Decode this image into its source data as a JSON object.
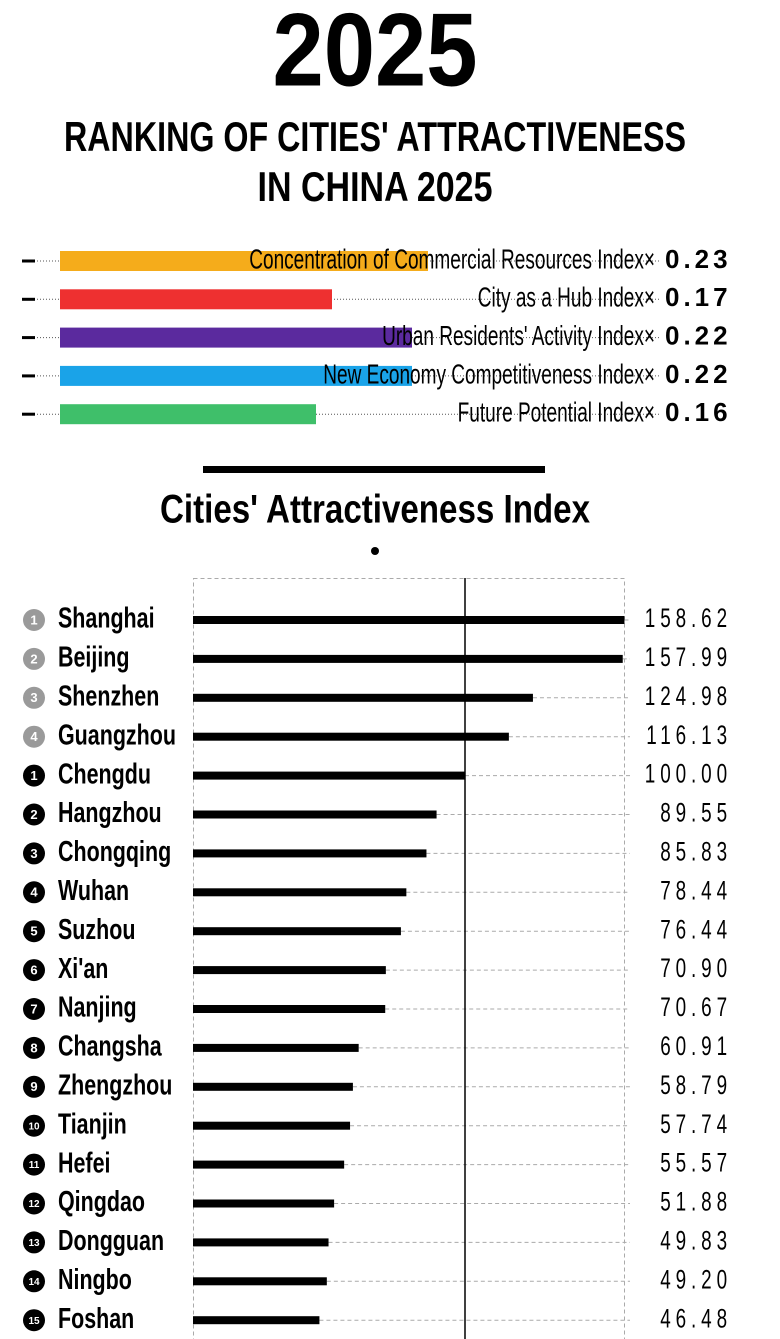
{
  "header": {
    "year": "2025",
    "title_lines": [
      "RANKING OF CITIES' ATTRACTIVENESS",
      "IN CHINA 2025"
    ]
  },
  "weights": {
    "xlim": [
      0,
      0.25
    ],
    "items": [
      {
        "name": "Concentration of Commercial Resources Index×",
        "value": 0.23,
        "color": "#f5ac1b"
      },
      {
        "name": "City as a Hub Index×",
        "value": 0.17,
        "color": "#ee3030"
      },
      {
        "name": "Urban Residents' Activity Index×",
        "value": 0.22,
        "color": "#5b2a9e"
      },
      {
        "name": "New Economy Competitiveness Index×",
        "value": 0.22,
        "color": "#1aa3e8"
      },
      {
        "name": "Future Potential Index×",
        "value": 0.16,
        "color": "#3fbf6a"
      }
    ]
  },
  "chart_data": {
    "type": "bar",
    "title": "Cities' Attractiveness Index",
    "categories": [
      "Shanghai",
      "Beijing",
      "Shenzhen",
      "Guangzhou",
      "Chengdu",
      "Hangzhou",
      "Chongqing",
      "Wuhan",
      "Suzhou",
      "Xi'an",
      "Nanjing",
      "Changsha",
      "Zhengzhou",
      "Tianjin",
      "Hefei",
      "Qingdao",
      "Dongguan",
      "Ningbo",
      "Foshan"
    ],
    "ranks": [
      1,
      2,
      3,
      4,
      1,
      2,
      3,
      4,
      5,
      6,
      7,
      8,
      9,
      10,
      11,
      12,
      13,
      14,
      15
    ],
    "rank_colors": [
      "#9a9a9a",
      "#9a9a9a",
      "#9a9a9a",
      "#9a9a9a",
      "#000000",
      "#000000",
      "#000000",
      "#000000",
      "#000000",
      "#000000",
      "#000000",
      "#000000",
      "#000000",
      "#000000",
      "#000000",
      "#000000",
      "#000000",
      "#000000",
      "#000000"
    ],
    "values": [
      158.62,
      157.99,
      124.98,
      116.13,
      100.0,
      89.55,
      85.83,
      78.44,
      76.44,
      70.9,
      70.67,
      60.91,
      58.79,
      57.74,
      55.57,
      51.88,
      49.83,
      49.2,
      46.48
    ],
    "value_labels": [
      "158.62",
      "157.99",
      "124.98",
      "116.13",
      "100.00",
      "89.55",
      "85.83",
      "78.44",
      "76.44",
      "70.90",
      "70.67",
      "60.91",
      "58.79",
      "57.74",
      "55.57",
      "51.88",
      "49.83",
      "49.20",
      "46.48"
    ],
    "color": "#000000",
    "xlim": [
      0,
      160
    ],
    "reference_value": 100,
    "grid": true
  }
}
